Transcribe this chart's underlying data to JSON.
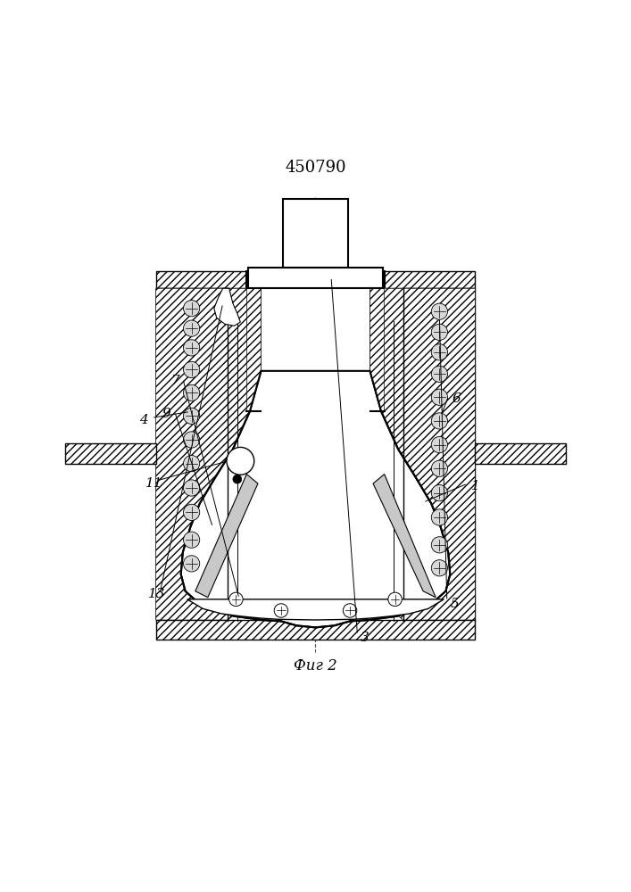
{
  "title": "450790",
  "fig_label": "Фиг 2",
  "bg_color": "#ffffff",
  "line_color": "#000000",
  "title_fontsize": 13,
  "label_fontsize": 11,
  "figsize": [
    7.07,
    10.0
  ],
  "dpi": 100
}
